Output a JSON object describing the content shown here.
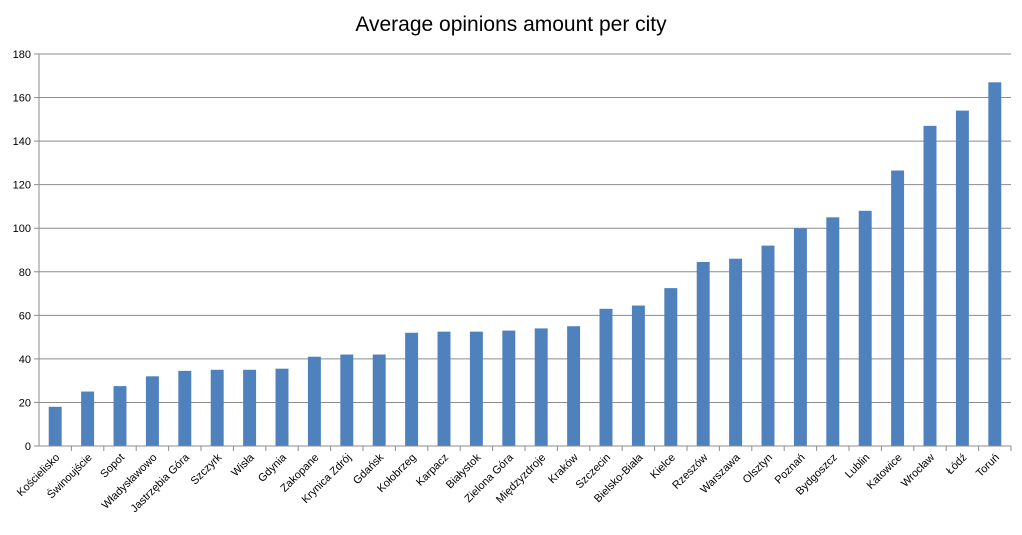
{
  "chart_data": {
    "type": "bar",
    "title": "Average opinions amount per city",
    "xlabel": "",
    "ylabel": "",
    "ylim": [
      0,
      180
    ],
    "yticks": [
      0,
      20,
      40,
      60,
      80,
      100,
      120,
      140,
      160,
      180
    ],
    "grid": true,
    "legend": "none",
    "bar_color": "#4f81bd",
    "categories": [
      "Kościelisko",
      "Świnoujście",
      "Sopot",
      "Władysławowo",
      "Jastrzębia Góra",
      "Szczyrk",
      "Wisła",
      "Gdynia",
      "Zakopane",
      "Krynica Zdrój",
      "Gdańsk",
      "Kołobrzeg",
      "Karpacz",
      "Białystok",
      "Zielona Góra",
      "Międzyzdroje",
      "Kraków",
      "Szczecin",
      "Bielsko-Biała",
      "Kielce",
      "Rzeszów",
      "Warszawa",
      "Olsztyn",
      "Poznań",
      "Bydgoszcz",
      "Lublin",
      "Katowice",
      "Wrocław",
      "Łódź",
      "Toruń"
    ],
    "values": [
      18,
      25,
      27.5,
      32,
      34.5,
      35,
      35,
      35.5,
      41,
      42,
      42,
      52,
      52.5,
      52.5,
      53,
      54,
      55,
      63,
      64.5,
      72.5,
      84.5,
      86,
      92,
      100,
      105,
      108,
      126.5,
      147,
      154,
      167
    ]
  }
}
